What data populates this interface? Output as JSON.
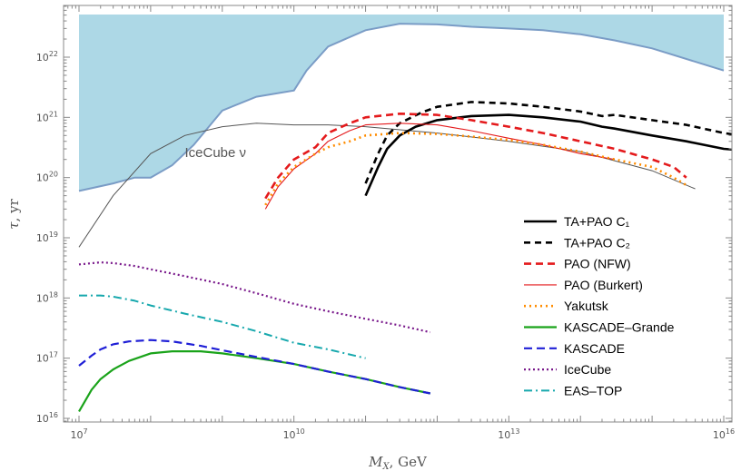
{
  "chart_data": {
    "type": "line",
    "xlabel": "M_X, GeV",
    "ylabel": "τ, yr",
    "x_scale": "log",
    "y_scale": "log",
    "xlim": [
      1000000.0,
      1e+16
    ],
    "ylim": [
      1e+16,
      1e+23
    ],
    "x_ticks": [
      {
        "value": 10000000.0,
        "mant": "10",
        "exp": "7"
      },
      {
        "value": 10000000000.0,
        "mant": "10",
        "exp": "10"
      },
      {
        "value": 10000000000000.0,
        "mant": "10",
        "exp": "13"
      },
      {
        "value": 1e+16,
        "mant": "10",
        "exp": "16"
      }
    ],
    "y_ticks": [
      {
        "value": 1e+16,
        "mant": "10",
        "exp": "16"
      },
      {
        "value": 1e+17,
        "mant": "10",
        "exp": "17"
      },
      {
        "value": 1e+18,
        "mant": "10",
        "exp": "18"
      },
      {
        "value": 1e+19,
        "mant": "10",
        "exp": "19"
      },
      {
        "value": 1e+20,
        "mant": "10",
        "exp": "20"
      },
      {
        "value": 1e+21,
        "mant": "10",
        "exp": "21"
      },
      {
        "value": 1e+22,
        "mant": "10",
        "exp": "22"
      }
    ],
    "grid": false,
    "legend_position": "bottom-right",
    "annotations": [
      {
        "text": "IceCube ν",
        "x": 300000000.0,
        "y": 2.2e+20
      }
    ],
    "excluded_region": {
      "color": "#add8e6",
      "edge_color": "#7a9cc6",
      "x": [
        10000000.0,
        30000000.0,
        60000000.0,
        100000000.0,
        200000000.0,
        400000000.0,
        1000000000.0,
        3000000000.0,
        10000000000.0,
        15000000000.0,
        30000000000.0,
        100000000000.0,
        300000000000.0,
        1000000000000.0,
        3000000000000.0,
        10000000000000.0,
        30000000000000.0,
        100000000000000.0,
        300000000000000.0,
        1000000000000000.0,
        1e+16
      ],
      "y": [
        6e+19,
        8e+19,
        1e+20,
        1e+20,
        1.6e+20,
        3.5e+20,
        1.3e+21,
        2.2e+21,
        2.8e+21,
        6e+21,
        1.5e+22,
        2.8e+22,
        3.6e+22,
        3.5e+22,
        3.2e+22,
        3e+22,
        2.8e+22,
        2.4e+22,
        1.9e+22,
        1.4e+22,
        6e+21
      ]
    },
    "icecube_nu_curve": {
      "color": "#555555",
      "x": [
        10000000.0,
        30000000.0,
        100000000.0,
        300000000.0,
        1000000000.0,
        3000000000.0,
        10000000000.0,
        30000000000.0,
        100000000000.0,
        1000000000000.0,
        10000000000000.0,
        100000000000000.0,
        1000000000000000.0,
        4000000000000000.0
      ],
      "y": [
        7e+18,
        5e+19,
        2.5e+20,
        5e+20,
        7e+20,
        8e+20,
        7.5e+20,
        7.5e+20,
        7e+20,
        5.5e+20,
        4e+20,
        2.7e+20,
        1.3e+20,
        6.5e+19
      ]
    },
    "series": [
      {
        "name": "TA+PAO C₁",
        "color": "#000000",
        "width": 2.6,
        "dash": "",
        "x": [
          100000000000.0,
          150000000000.0,
          200000000000.0,
          300000000000.0,
          500000000000.0,
          1000000000000.0,
          3000000000000.0,
          10000000000000.0,
          30000000000000.0,
          100000000000000.0,
          200000000000000.0,
          300000000000000.0,
          1000000000000000.0,
          3000000000000000.0,
          1e+16,
          3e+16
        ],
        "y": [
          5e+19,
          1.5e+20,
          3e+20,
          5e+20,
          7e+20,
          9e+20,
          1.05e+21,
          1.1e+21,
          1e+21,
          8.5e+20,
          7e+20,
          6.5e+20,
          5e+20,
          4e+20,
          3e+20,
          2.7e+20
        ]
      },
      {
        "name": "TA+PAO C₂",
        "color": "#000000",
        "width": 2.6,
        "dash": "7 5",
        "x": [
          100000000000.0,
          150000000000.0,
          200000000000.0,
          300000000000.0,
          600000000000.0,
          1000000000000.0,
          3000000000000.0,
          10000000000000.0,
          30000000000000.0,
          100000000000000.0,
          200000000000000.0,
          300000000000000.0,
          1000000000000000.0,
          3000000000000000.0,
          1e+16,
          3e+16
        ],
        "y": [
          8e+19,
          2.5e+20,
          5e+20,
          8e+20,
          1.2e+21,
          1.5e+21,
          1.8e+21,
          1.7e+21,
          1.5e+21,
          1.25e+21,
          1.05e+21,
          1.1e+21,
          9e+20,
          7.5e+20,
          5.5e+20,
          4.5e+20
        ]
      },
      {
        "name": "PAO (NFW)",
        "color": "#e41a1c",
        "width": 2.6,
        "dash": "8 5",
        "x": [
          4000000000.0,
          6000000000.0,
          10000000000.0,
          20000000000.0,
          30000000000.0,
          60000000000.0,
          100000000000.0,
          300000000000.0,
          1000000000000.0,
          3000000000000.0,
          10000000000000.0,
          30000000000000.0,
          100000000000000.0,
          300000000000000.0,
          1000000000000000.0,
          2000000000000000.0,
          3000000000000000.0
        ],
        "y": [
          4.5e+19,
          1e+20,
          2e+20,
          3.2e+20,
          5.5e+20,
          8e+20,
          1e+21,
          1.15e+21,
          1.1e+21,
          9e+20,
          7e+20,
          5.5e+20,
          4e+20,
          3e+20,
          2e+20,
          1.5e+20,
          1e+20
        ]
      },
      {
        "name": "PAO (Burkert)",
        "color": "#e41a1c",
        "width": 1.1,
        "dash": "",
        "x": [
          4000000000.0,
          6000000000.0,
          10000000000.0,
          20000000000.0,
          30000000000.0,
          60000000000.0,
          100000000000.0,
          300000000000.0,
          1000000000000.0,
          3000000000000.0,
          10000000000000.0,
          30000000000000.0,
          100000000000000.0,
          300000000000000.0
        ],
        "y": [
          3e+19,
          7e+19,
          1.4e+20,
          2.5e+20,
          4e+20,
          6e+20,
          7.5e+20,
          8e+20,
          7.5e+20,
          6e+20,
          4.5e+20,
          3.5e+20,
          2.5e+20,
          2e+20
        ]
      },
      {
        "name": "Yakutsk",
        "color": "#ff8c00",
        "width": 2.6,
        "dash": "2 4",
        "x": [
          4000000000.0,
          6000000000.0,
          10000000000.0,
          20000000000.0,
          30000000000.0,
          60000000000.0,
          100000000000.0,
          300000000000.0,
          1000000000000.0,
          3000000000000.0,
          10000000000000.0,
          30000000000000.0,
          100000000000000.0,
          300000000000000.0,
          1000000000000000.0,
          2000000000000000.0,
          3000000000000000.0
        ],
        "y": [
          3.5e+19,
          8e+19,
          1.5e+20,
          2.5e+20,
          3.2e+20,
          4e+20,
          5e+20,
          5.5e+20,
          5.3e+20,
          4.8e+20,
          4.2e+20,
          3.5e+20,
          2.7e+20,
          2e+20,
          1.5e+20,
          1e+20,
          7.5e+19
        ]
      },
      {
        "name": "KASCADE–Grande",
        "color": "#1aa31a",
        "width": 2.2,
        "dash": "",
        "x": [
          10000000.0,
          15000000.0,
          20000000.0,
          30000000.0,
          50000000.0,
          100000000.0,
          200000000.0,
          500000000.0,
          1000000000.0,
          3000000000.0,
          10000000000.0,
          30000000000.0,
          100000000000.0,
          300000000000.0,
          800000000000.0
        ],
        "y": [
          1.3e+16,
          3e+16,
          4.5e+16,
          6.5e+16,
          9e+16,
          1.2e+17,
          1.3e+17,
          1.3e+17,
          1.2e+17,
          1e+17,
          8e+16,
          6e+16,
          4.5e+16,
          3.3e+16,
          2.6e+16
        ]
      },
      {
        "name": "KASCADE",
        "color": "#1f1fd6",
        "width": 2.2,
        "dash": "9 5",
        "x": [
          10000000.0,
          15000000.0,
          20000000.0,
          30000000.0,
          50000000.0,
          100000000.0,
          200000000.0,
          500000000.0,
          1000000000.0,
          3000000000.0,
          10000000000.0,
          30000000000.0,
          100000000000.0,
          300000000000.0,
          800000000000.0
        ],
        "y": [
          7.5e+16,
          1.1e+17,
          1.4e+17,
          1.7e+17,
          1.9e+17,
          2e+17,
          1.9e+17,
          1.6e+17,
          1.35e+17,
          1.05e+17,
          8e+16,
          6e+16,
          4.5e+16,
          3.3e+16,
          2.6e+16
        ]
      },
      {
        "name": "IceCube",
        "color": "#7a1a8c",
        "width": 2.2,
        "dash": "2 3",
        "x": [
          10000000.0,
          20000000.0,
          30000000.0,
          60000000.0,
          100000000.0,
          300000000.0,
          1000000000.0,
          3000000000.0,
          10000000000.0,
          30000000000.0,
          100000000000.0,
          300000000000.0,
          800000000000.0
        ],
        "y": [
          3.6e+18,
          3.9e+18,
          3.8e+18,
          3.4e+18,
          3e+18,
          2.3e+18,
          1.7e+18,
          1.2e+18,
          8e+17,
          6e+17,
          4.5e+17,
          3.5e+17,
          2.7e+17
        ]
      },
      {
        "name": "EAS–TOP",
        "color": "#17a8ad",
        "width": 2.0,
        "dash": "9 4 2 4",
        "x": [
          10000000.0,
          20000000.0,
          30000000.0,
          60000000.0,
          100000000.0,
          300000000.0,
          1000000000.0,
          3000000000.0,
          10000000000.0,
          30000000000.0,
          100000000000.0
        ],
        "y": [
          1.1e+18,
          1.1e+18,
          1.05e+18,
          9e+17,
          7.5e+17,
          5.5e+17,
          4e+17,
          2.8e+17,
          1.8e+17,
          1.4e+17,
          1e+17
        ]
      }
    ]
  }
}
